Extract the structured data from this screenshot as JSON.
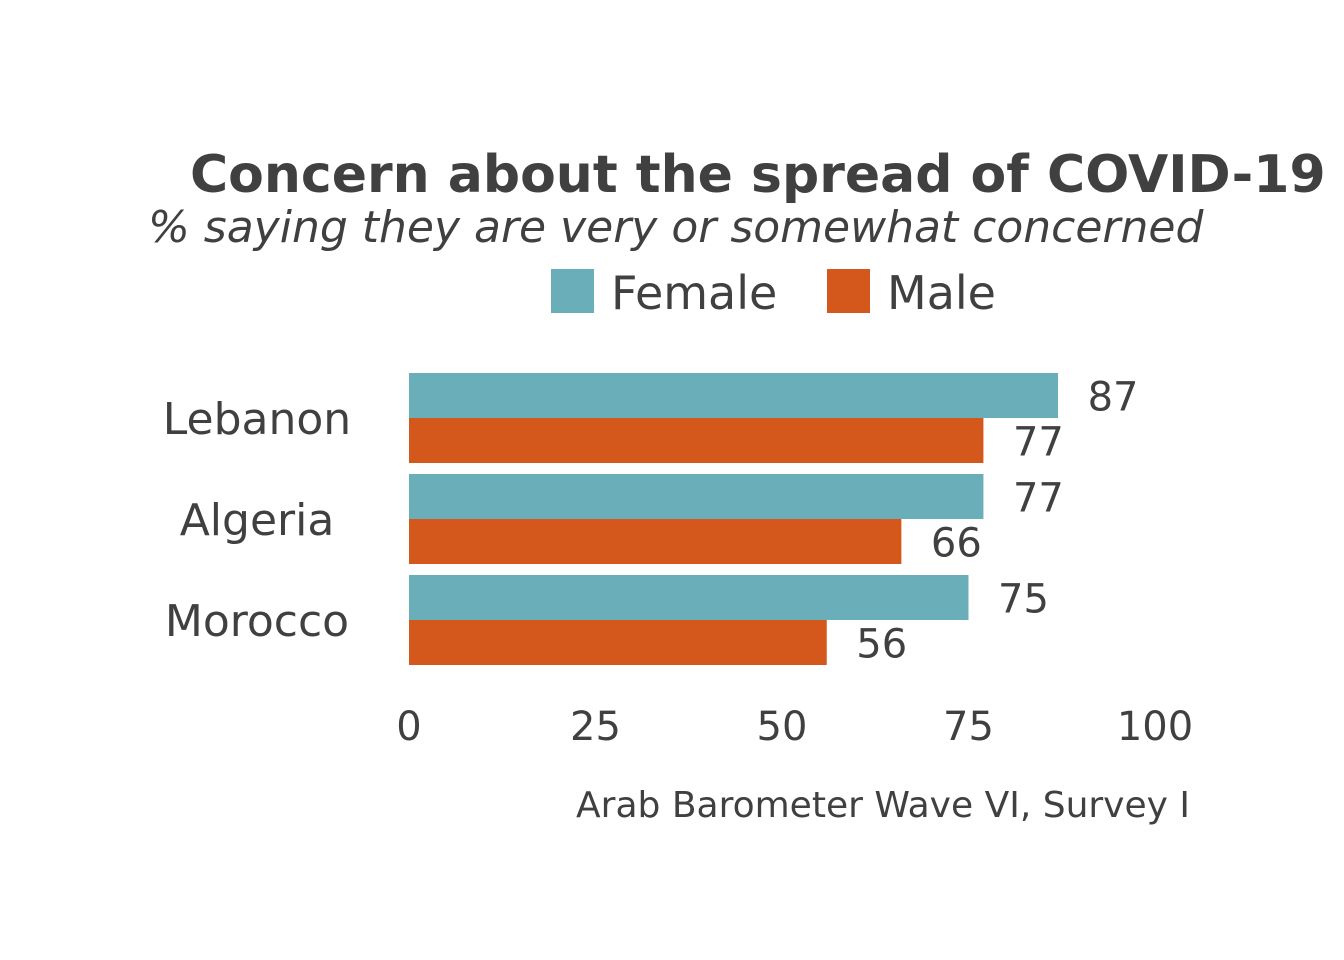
{
  "chart_data": {
    "type": "bar",
    "orientation": "horizontal",
    "title": "Concern about the spread of COVID-19",
    "subtitle": "% saying they are very or somewhat concerned",
    "categories": [
      "Lebanon",
      "Algeria",
      "Morocco"
    ],
    "series": [
      {
        "name": "Female",
        "color": "#6aaeba",
        "values": [
          87,
          77,
          75
        ]
      },
      {
        "name": "Male",
        "color": "#d4581c",
        "values": [
          77,
          66,
          56
        ]
      }
    ],
    "xlim": [
      0,
      100
    ],
    "xticks": [
      0,
      25,
      50,
      75,
      100
    ],
    "xlabel": "",
    "ylabel": "",
    "grid": false,
    "legend_position": "top",
    "caption": "Arab Barometer Wave VI, Survey I"
  }
}
